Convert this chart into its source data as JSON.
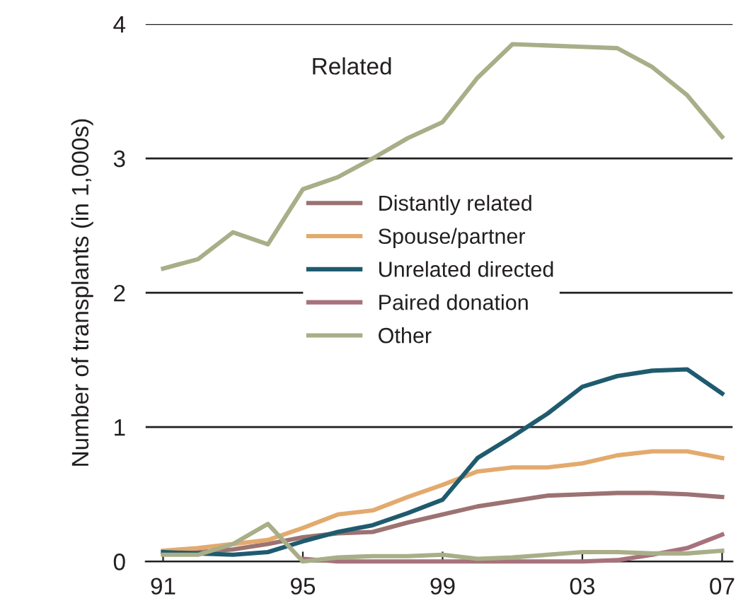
{
  "chart_data": {
    "type": "line",
    "ylabel": "Number of transplants (in 1,000s)",
    "x": [
      1991,
      1992,
      1993,
      1994,
      1995,
      1996,
      1997,
      1998,
      1999,
      2000,
      2001,
      2002,
      2003,
      2004,
      2005,
      2006,
      2007
    ],
    "xlim": [
      1990.5,
      2007.3
    ],
    "xticks": [
      {
        "value": 1991,
        "label": "91"
      },
      {
        "value": 1995,
        "label": "95"
      },
      {
        "value": 1999,
        "label": "99"
      },
      {
        "value": 2003,
        "label": "03"
      },
      {
        "value": 2007,
        "label": "07"
      }
    ],
    "ylim": [
      0,
      4
    ],
    "yticks": [
      0,
      1,
      2,
      3,
      4
    ],
    "grid": "y",
    "legend": "center",
    "series": [
      {
        "name": "Related",
        "color": "#a9ae88",
        "values": [
          2.18,
          2.25,
          2.45,
          2.36,
          2.77,
          2.86,
          3.0,
          3.15,
          3.27,
          3.6,
          3.85,
          3.84,
          3.83,
          3.82,
          3.68,
          3.47,
          3.16
        ]
      },
      {
        "name": "Distantly related",
        "color": "#9c7272",
        "values": [
          0.06,
          0.07,
          0.09,
          0.13,
          0.18,
          0.21,
          0.22,
          0.29,
          0.35,
          0.41,
          0.45,
          0.49,
          0.5,
          0.51,
          0.51,
          0.5,
          0.48
        ]
      },
      {
        "name": "Spouse/partner",
        "color": "#e3aa6e",
        "values": [
          0.08,
          0.1,
          0.13,
          0.16,
          0.25,
          0.35,
          0.38,
          0.48,
          0.57,
          0.67,
          0.7,
          0.7,
          0.73,
          0.79,
          0.82,
          0.82,
          0.77
        ]
      },
      {
        "name": "Unrelated directed",
        "color": "#1f5b6e",
        "values": [
          0.07,
          0.06,
          0.05,
          0.07,
          0.15,
          0.22,
          0.27,
          0.36,
          0.46,
          0.77,
          0.93,
          1.1,
          1.3,
          1.38,
          1.42,
          1.43,
          1.25
        ]
      },
      {
        "name": "Paired donation",
        "color": "#a7727c",
        "values": [
          null,
          null,
          null,
          null,
          0.02,
          0,
          0,
          0,
          0,
          0,
          0,
          0,
          0,
          0.01,
          0.05,
          0.1,
          0.2
        ]
      },
      {
        "name": "Other",
        "color": "#a9ae88",
        "values": [
          0.05,
          0.05,
          0.13,
          0.28,
          0,
          0.03,
          0.04,
          0.04,
          0.05,
          0.02,
          0.03,
          0.05,
          0.07,
          0.07,
          0.06,
          0.06,
          0.08
        ]
      }
    ]
  }
}
